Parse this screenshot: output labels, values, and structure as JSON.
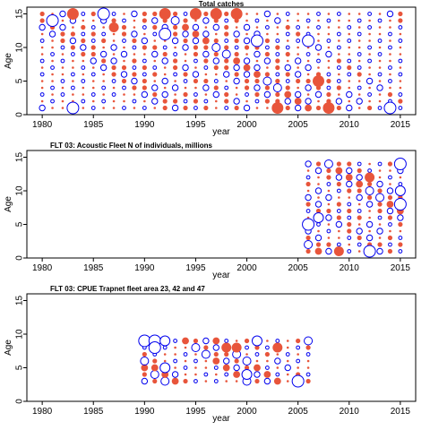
{
  "figure_title": "Total catches",
  "colors": {
    "positive": "#e8553b",
    "negative": "#0000ee"
  },
  "chart_data": [
    {
      "type": "scatter",
      "title": "Total catches",
      "xlabel": "year",
      "ylabel": "Age",
      "xlim": [
        1978.5,
        2016.5
      ],
      "ylim": [
        0,
        16
      ],
      "xticks": [
        1980,
        1985,
        1990,
        1995,
        2000,
        2005,
        2010,
        2015
      ],
      "yticks": [
        0,
        5,
        10,
        15
      ],
      "years": [
        1980,
        2015
      ],
      "ages": [
        1,
        15
      ],
      "pattern": [
        [
          1,
          1,
          1,
          2,
          1,
          2,
          1,
          3,
          1,
          2,
          1,
          2,
          1,
          3,
          2,
          3,
          1,
          2,
          1,
          3,
          2,
          3,
          1,
          1,
          2,
          1,
          2,
          1,
          2,
          1,
          2,
          1,
          1,
          2,
          1,
          2
        ],
        [
          1,
          2,
          1,
          1,
          2,
          1,
          3,
          1,
          2,
          1,
          2,
          1,
          3,
          2,
          1,
          2,
          3,
          2,
          2,
          1,
          1,
          2,
          2,
          1,
          2,
          2,
          1,
          3,
          3,
          1,
          2,
          2,
          1,
          2,
          2,
          1
        ]
      ],
      "highlights": [
        {
          "x": 1983,
          "y": 15,
          "r": 5,
          "sign": "pos"
        },
        {
          "x": 1987,
          "y": 13,
          "r": 4,
          "sign": "pos"
        },
        {
          "x": 1992,
          "y": 15,
          "r": 5,
          "sign": "pos"
        },
        {
          "x": 1995,
          "y": 15,
          "r": 5,
          "sign": "pos"
        },
        {
          "x": 1997,
          "y": 15,
          "r": 5,
          "sign": "pos"
        },
        {
          "x": 1999,
          "y": 15,
          "r": 5,
          "sign": "pos"
        },
        {
          "x": 2003,
          "y": 1,
          "r": 5,
          "sign": "pos"
        },
        {
          "x": 2007,
          "y": 5,
          "r": 5,
          "sign": "pos"
        },
        {
          "x": 2008,
          "y": 1,
          "r": 5,
          "sign": "pos"
        },
        {
          "x": 1981,
          "y": 14,
          "r": 5,
          "sign": "neg"
        },
        {
          "x": 1986,
          "y": 15,
          "r": 5,
          "sign": "neg"
        },
        {
          "x": 1992,
          "y": 12,
          "r": 5,
          "sign": "neg"
        },
        {
          "x": 2001,
          "y": 11,
          "r": 5,
          "sign": "neg"
        },
        {
          "x": 2006,
          "y": 11,
          "r": 5,
          "sign": "neg"
        },
        {
          "x": 1983,
          "y": 1,
          "r": 5,
          "sign": "neg"
        },
        {
          "x": 2014,
          "y": 1,
          "r": 5,
          "sign": "neg"
        }
      ]
    },
    {
      "type": "scatter",
      "title": "FLT 03: Acoustic Fleet   N of individuals, millions",
      "xlabel": "year",
      "ylabel": "Age",
      "xlim": [
        1978.5,
        2016.5
      ],
      "ylim": [
        0,
        16
      ],
      "xticks": [
        1980,
        1985,
        1990,
        1995,
        2000,
        2005,
        2010,
        2015
      ],
      "yticks": [
        0,
        5,
        10,
        15
      ],
      "years": [
        2006,
        2015
      ],
      "ages": [
        1,
        14
      ],
      "pattern": [
        [
          2,
          1,
          3,
          1,
          2,
          3,
          1,
          2,
          2,
          3,
          1,
          2,
          1,
          3
        ],
        [
          1,
          2,
          1,
          2,
          3,
          1,
          2,
          1,
          3,
          2,
          1,
          2,
          1,
          1
        ]
      ],
      "highlights": [
        {
          "x": 2006,
          "y": 5,
          "r": 5,
          "sign": "neg"
        },
        {
          "x": 2007,
          "y": 6,
          "r": 4,
          "sign": "neg"
        },
        {
          "x": 2012,
          "y": 1,
          "r": 5,
          "sign": "neg"
        },
        {
          "x": 2015,
          "y": 14,
          "r": 5,
          "sign": "neg"
        },
        {
          "x": 2015,
          "y": 8,
          "r": 5,
          "sign": "neg"
        },
        {
          "x": 2015,
          "y": 10,
          "r": 4,
          "sign": "neg"
        },
        {
          "x": 2012,
          "y": 12,
          "r": 4,
          "sign": "pos"
        },
        {
          "x": 2009,
          "y": 1,
          "r": 4,
          "sign": "pos"
        }
      ]
    },
    {
      "type": "scatter",
      "title": "FLT 03: CPUE Trapnet fleet area 23, 42 and 47",
      "xlabel": "year",
      "ylabel": "Age",
      "xlim": [
        1978.5,
        2016.5
      ],
      "ylim": [
        0,
        16
      ],
      "xticks": [
        1980,
        1985,
        1990,
        1995,
        2000,
        2005,
        2010,
        2015
      ],
      "yticks": [
        0,
        5,
        10,
        15
      ],
      "years": [
        1990,
        2006
      ],
      "ages": [
        3,
        9
      ],
      "pattern": [
        [
          2,
          1,
          3,
          1,
          2,
          1,
          3,
          2,
          1,
          2,
          1,
          3,
          1,
          2,
          2,
          1,
          3
        ],
        [
          1,
          3,
          2,
          2,
          1,
          3,
          1,
          2,
          3,
          1,
          2,
          1,
          2,
          3,
          1,
          2,
          1
        ]
      ],
      "highlights": [
        {
          "x": 1990,
          "y": 9,
          "r": 5,
          "sign": "neg"
        },
        {
          "x": 1991,
          "y": 9,
          "r": 5,
          "sign": "neg"
        },
        {
          "x": 1991,
          "y": 8,
          "r": 5,
          "sign": "neg"
        },
        {
          "x": 1992,
          "y": 9,
          "r": 4,
          "sign": "neg"
        },
        {
          "x": 1992,
          "y": 5,
          "r": 4,
          "sign": "neg"
        },
        {
          "x": 2001,
          "y": 9,
          "r": 4,
          "sign": "neg"
        },
        {
          "x": 2005,
          "y": 3,
          "r": 5,
          "sign": "neg"
        },
        {
          "x": 2000,
          "y": 4,
          "r": 4,
          "sign": "neg"
        },
        {
          "x": 1998,
          "y": 8,
          "r": 4,
          "sign": "pos"
        },
        {
          "x": 1999,
          "y": 8,
          "r": 4,
          "sign": "pos"
        },
        {
          "x": 2003,
          "y": 8,
          "r": 4,
          "sign": "pos"
        }
      ]
    }
  ]
}
